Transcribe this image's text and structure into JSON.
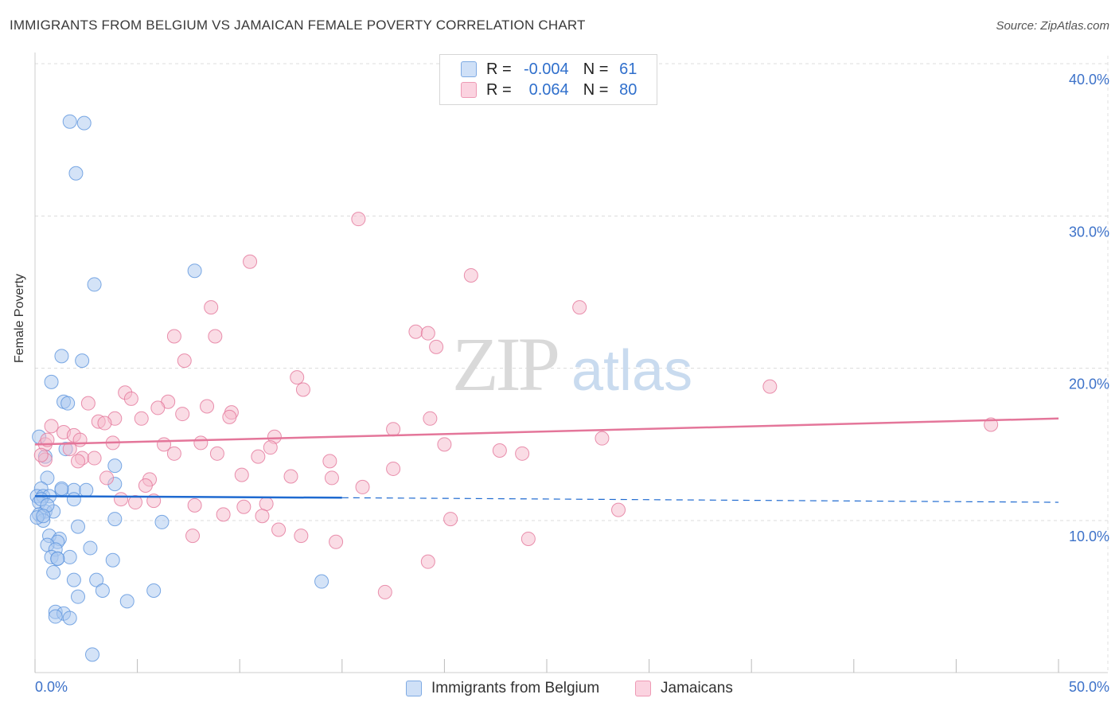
{
  "title": "IMMIGRANTS FROM BELGIUM VS JAMAICAN FEMALE POVERTY CORRELATION CHART",
  "source": "Source: ZipAtlas.com",
  "watermark": {
    "zip": "ZIP",
    "atlas": "atlas"
  },
  "legend": {
    "rows": [
      {
        "r_label": "R =",
        "r_value": "-0.004",
        "n_label": "N =",
        "n_value": "61",
        "color": "#a9c8f0"
      },
      {
        "r_label": "R =",
        "r_value": "0.064",
        "n_label": "N =",
        "n_value": "80",
        "color": "#f6b9cc"
      }
    ]
  },
  "bottom_legend": {
    "belgium": "Immigrants from Belgium",
    "jamaicans": "Jamaicans"
  },
  "chart_data": {
    "type": "scatter",
    "title": "IMMIGRANTS FROM BELGIUM VS JAMAICAN FEMALE POVERTY CORRELATION CHART",
    "xlabel": "",
    "ylabel": "Female Poverty",
    "xlim": [
      0,
      50
    ],
    "ylim": [
      0,
      41
    ],
    "x_tick_labels": [
      "0.0%",
      "50.0%"
    ],
    "y_ticks": [
      10,
      20,
      30,
      40
    ],
    "y_tick_labels": [
      "10.0%",
      "20.0%",
      "30.0%",
      "40.0%"
    ],
    "grid": true,
    "legend_position": "top-center",
    "series": [
      {
        "name": "Immigrants from Belgium",
        "color": "#5b93dd",
        "fill": "#a9c8f0",
        "r": "-0.004",
        "n": "61",
        "trend": {
          "x": [
            0,
            15
          ],
          "y": [
            11.6,
            11.5
          ],
          "dashed_to": [
            50,
            11.2
          ],
          "color": "#1f6ad0"
        },
        "points": [
          [
            1.7,
            36.2
          ],
          [
            2.4,
            36.1
          ],
          [
            2.0,
            32.8
          ],
          [
            7.8,
            26.4
          ],
          [
            2.9,
            25.5
          ],
          [
            1.3,
            20.8
          ],
          [
            2.3,
            20.5
          ],
          [
            0.8,
            19.1
          ],
          [
            1.4,
            17.8
          ],
          [
            1.6,
            17.7
          ],
          [
            0.2,
            15.5
          ],
          [
            0.5,
            14.2
          ],
          [
            1.5,
            14.7
          ],
          [
            3.9,
            13.6
          ],
          [
            0.6,
            12.8
          ],
          [
            3.9,
            12.4
          ],
          [
            0.3,
            12.1
          ],
          [
            1.3,
            12.0
          ],
          [
            1.9,
            12.0
          ],
          [
            2.5,
            12.0
          ],
          [
            0.1,
            11.6
          ],
          [
            0.4,
            11.6
          ],
          [
            0.7,
            11.6
          ],
          [
            1.9,
            11.4
          ],
          [
            0.2,
            11.2
          ],
          [
            0.5,
            10.6
          ],
          [
            0.9,
            10.6
          ],
          [
            0.2,
            10.4
          ],
          [
            0.4,
            10.0
          ],
          [
            3.9,
            10.1
          ],
          [
            6.2,
            9.9
          ],
          [
            2.1,
            9.6
          ],
          [
            0.7,
            9.0
          ],
          [
            1.2,
            8.8
          ],
          [
            1.1,
            8.6
          ],
          [
            0.6,
            8.4
          ],
          [
            1.0,
            8.1
          ],
          [
            2.7,
            8.2
          ],
          [
            0.8,
            7.6
          ],
          [
            1.1,
            7.5
          ],
          [
            1.7,
            7.6
          ],
          [
            3.8,
            7.4
          ],
          [
            0.9,
            6.6
          ],
          [
            1.9,
            6.1
          ],
          [
            3.0,
            6.1
          ],
          [
            14.0,
            6.0
          ],
          [
            3.3,
            5.4
          ],
          [
            5.8,
            5.4
          ],
          [
            2.1,
            5.0
          ],
          [
            4.5,
            4.7
          ],
          [
            1.0,
            4.0
          ],
          [
            1.4,
            3.9
          ],
          [
            1.0,
            3.7
          ],
          [
            1.7,
            3.6
          ],
          [
            2.8,
            1.2
          ],
          [
            0.3,
            11.4
          ],
          [
            0.1,
            10.2
          ],
          [
            0.6,
            11.0
          ],
          [
            1.1,
            7.5
          ],
          [
            0.4,
            10.3
          ],
          [
            1.3,
            12.1
          ]
        ]
      },
      {
        "name": "Jamaicans",
        "color": "#e4769a",
        "fill": "#f6b9cc",
        "r": "0.064",
        "n": "80",
        "trend": {
          "x": [
            0,
            50
          ],
          "y": [
            15.0,
            16.7
          ],
          "color": "#e4769a"
        },
        "points": [
          [
            15.8,
            29.8
          ],
          [
            10.5,
            27.0
          ],
          [
            21.3,
            26.1
          ],
          [
            26.6,
            24.0
          ],
          [
            8.6,
            24.0
          ],
          [
            18.6,
            22.4
          ],
          [
            19.2,
            22.3
          ],
          [
            6.8,
            22.1
          ],
          [
            8.8,
            22.1
          ],
          [
            19.6,
            21.4
          ],
          [
            7.3,
            20.5
          ],
          [
            12.8,
            19.4
          ],
          [
            13.1,
            18.6
          ],
          [
            35.9,
            18.8
          ],
          [
            4.4,
            18.4
          ],
          [
            4.7,
            18.0
          ],
          [
            6.5,
            17.8
          ],
          [
            2.6,
            17.7
          ],
          [
            8.4,
            17.5
          ],
          [
            6.0,
            17.4
          ],
          [
            7.2,
            17.0
          ],
          [
            9.6,
            17.1
          ],
          [
            9.5,
            16.8
          ],
          [
            3.9,
            16.7
          ],
          [
            5.2,
            16.7
          ],
          [
            19.3,
            16.7
          ],
          [
            3.1,
            16.5
          ],
          [
            3.4,
            16.4
          ],
          [
            0.8,
            16.2
          ],
          [
            17.5,
            16.0
          ],
          [
            46.7,
            16.3
          ],
          [
            1.4,
            15.8
          ],
          [
            1.9,
            15.6
          ],
          [
            11.7,
            15.5
          ],
          [
            2.2,
            15.3
          ],
          [
            27.7,
            15.4
          ],
          [
            3.8,
            15.1
          ],
          [
            8.1,
            15.1
          ],
          [
            6.3,
            15.0
          ],
          [
            20.0,
            15.0
          ],
          [
            0.5,
            15.0
          ],
          [
            11.5,
            14.8
          ],
          [
            1.7,
            14.7
          ],
          [
            6.8,
            14.4
          ],
          [
            22.7,
            14.6
          ],
          [
            23.8,
            14.4
          ],
          [
            8.9,
            14.4
          ],
          [
            10.9,
            14.2
          ],
          [
            2.3,
            14.1
          ],
          [
            2.9,
            14.1
          ],
          [
            2.1,
            13.9
          ],
          [
            14.4,
            13.9
          ],
          [
            0.5,
            14.0
          ],
          [
            17.5,
            13.4
          ],
          [
            10.1,
            13.0
          ],
          [
            12.5,
            12.9
          ],
          [
            14.5,
            12.8
          ],
          [
            3.5,
            12.8
          ],
          [
            5.6,
            12.7
          ],
          [
            5.4,
            12.3
          ],
          [
            16.0,
            12.2
          ],
          [
            4.2,
            11.4
          ],
          [
            5.8,
            11.3
          ],
          [
            4.9,
            11.2
          ],
          [
            11.3,
            11.1
          ],
          [
            7.8,
            11.0
          ],
          [
            10.2,
            10.9
          ],
          [
            28.5,
            10.7
          ],
          [
            9.2,
            10.4
          ],
          [
            11.1,
            10.3
          ],
          [
            20.3,
            10.1
          ],
          [
            11.9,
            9.4
          ],
          [
            7.7,
            9.0
          ],
          [
            13.0,
            9.0
          ],
          [
            24.1,
            8.8
          ],
          [
            14.7,
            8.6
          ],
          [
            19.2,
            7.3
          ],
          [
            17.1,
            5.3
          ],
          [
            0.3,
            14.3
          ],
          [
            0.6,
            15.3
          ]
        ]
      }
    ]
  }
}
